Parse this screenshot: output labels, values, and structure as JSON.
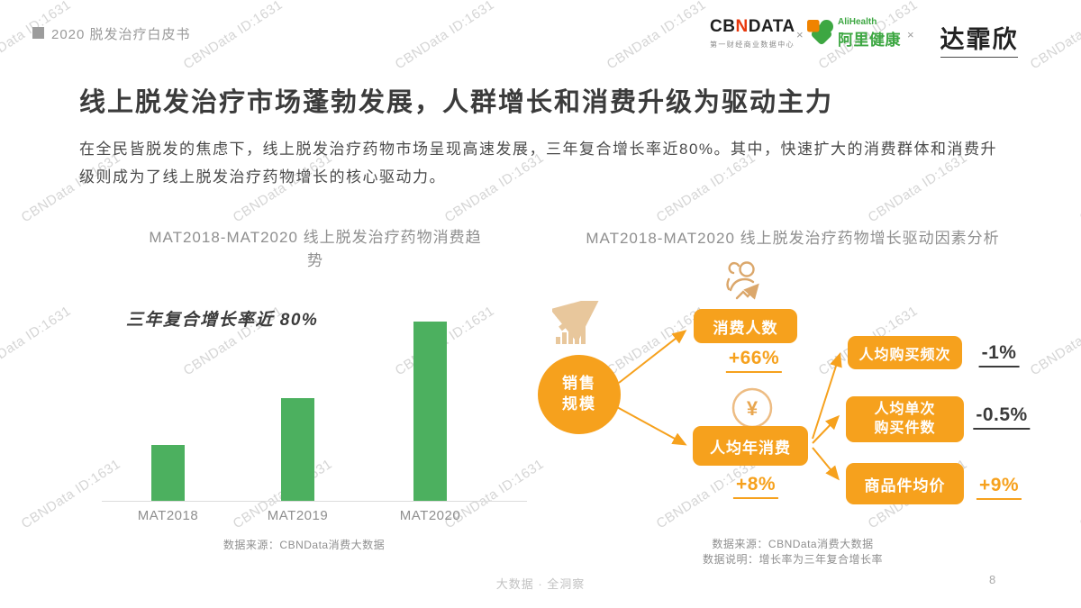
{
  "page": {
    "header": {
      "doc_title": "2020 脱发治疗白皮书"
    },
    "logos": {
      "cbndata": {
        "cb": "CB",
        "n": "N",
        "data": "DATA",
        "subtitle": "第一财经商业数据中心"
      },
      "x1": "×",
      "alihealth": {
        "en": "AliHealth",
        "cn": "阿里健康"
      },
      "x2": "×",
      "dafeixin": {
        "name": "达霏欣"
      }
    },
    "title": "线上脱发治疗市场蓬勃发展，人群增长和消费升级为驱动主力",
    "paragraph": "在全民皆脱发的焦虑下，线上脱发治疗药物市场呈现高速发展，三年复合增长率近80%。其中，快速扩大的消费群体和消费升级则成为了线上脱发治疗药物增长的核心驱动力。",
    "watermark": "CBNData ID:1631",
    "footer": {
      "center": "大数据 · 全洞察",
      "page_number": "8"
    }
  },
  "left_chart": {
    "title": "MAT2018-MAT2020 线上脱发治疗药物消费趋\n势",
    "annotation": "三年复合增长率近 80%",
    "source": "数据来源：CBNData消费大数据",
    "chart_data": {
      "type": "bar",
      "title": "MAT2018-MAT2020 线上脱发治疗药物消费趋势",
      "categories": [
        "MAT2018",
        "MAT2019",
        "MAT2020"
      ],
      "values": [
        1.0,
        1.85,
        3.24
      ],
      "unit": "relative consumption index (MAT2018 = 1, estimated from bar heights)",
      "annotation": "三年复合增长率近 80%",
      "bar_color": "#4CB05F",
      "ylim": [
        0,
        3.5
      ],
      "grid": false,
      "xlabel": "",
      "ylabel": ""
    }
  },
  "right_diagram": {
    "title": "MAT2018-MAT2020 线上脱发治疗药物增长驱动因素分析",
    "root_label": "销售\n规模",
    "nodes": [
      {
        "label": "消费人数",
        "value": "+66%"
      },
      {
        "label": "人均年消费",
        "value": "+8%"
      },
      {
        "label": "人均购买频次",
        "value": "-1%"
      },
      {
        "label": "人均单次\n购买件数",
        "value": "-0.5%"
      },
      {
        "label": "商品件均价",
        "value": "+9%"
      }
    ],
    "source": "数据来源：CBNData消费大数据",
    "note": "数据说明：增长率为三年复合增长率"
  },
  "colors": {
    "accent_orange": "#F6A11D",
    "bar_green": "#4CB05F",
    "title_dark": "#3B3B3B",
    "gray_text": "#8F8F8F",
    "cbn_red": "#E8380D",
    "alihealth_green": "#3DA742",
    "alihealth_orange": "#F08300"
  }
}
